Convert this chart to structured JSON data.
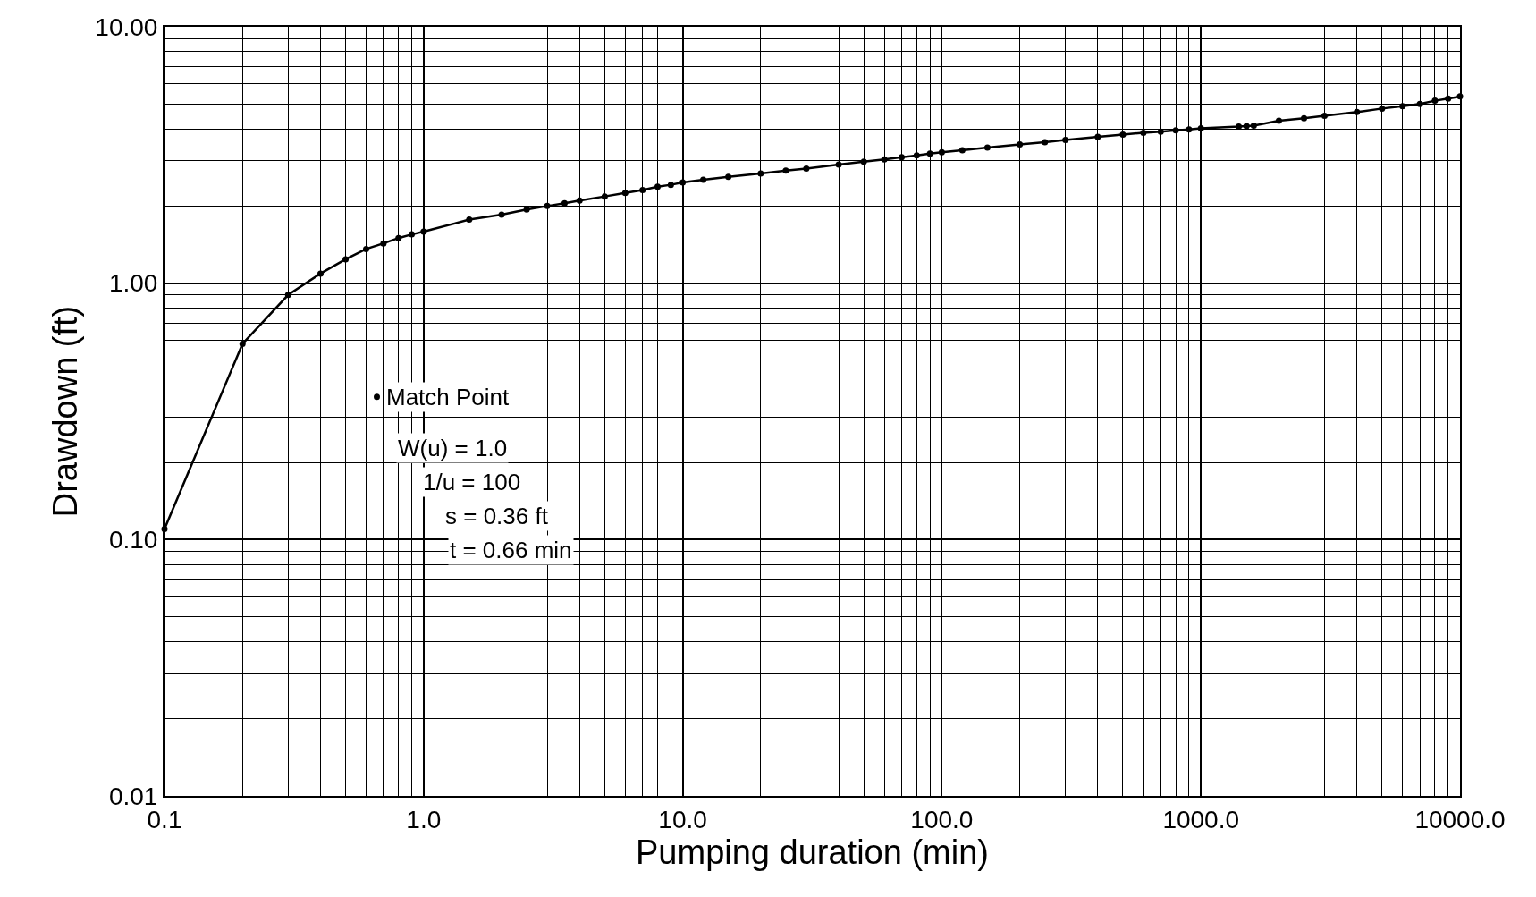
{
  "chart_data": {
    "type": "line",
    "xlabel": "Pumping duration (min)",
    "ylabel": "Drawdown (ft)",
    "log": "xy",
    "grid": true,
    "legend": false,
    "marker": "circle",
    "line_style": "solid",
    "xlim": [
      0.1,
      10000
    ],
    "xticks": [
      {
        "value": 0.1,
        "label": "0.1"
      },
      {
        "value": 1,
        "label": "1.0"
      },
      {
        "value": 10,
        "label": "10.0"
      },
      {
        "value": 100,
        "label": "100.0"
      },
      {
        "value": 1000,
        "label": "1000.0"
      },
      {
        "value": 10000,
        "label": "10000.0"
      }
    ],
    "ylim": [
      0.01,
      10
    ],
    "yticks": [
      {
        "value": 0.01,
        "label": "0.01"
      },
      {
        "value": 0.1,
        "label": "0.10"
      },
      {
        "value": 1,
        "label": "1.00"
      },
      {
        "value": 10,
        "label": "10.00"
      }
    ],
    "series": [
      {
        "color": "#000000",
        "x": [
          0.1,
          0.2,
          0.3,
          0.4,
          0.5,
          0.6,
          0.7,
          0.8,
          0.9,
          1,
          1.5,
          2,
          2.5,
          3,
          3.5,
          4,
          5,
          6,
          7,
          8,
          9,
          10,
          12,
          15,
          20,
          25,
          30,
          40,
          50,
          60,
          70,
          80,
          90,
          100,
          120,
          150,
          200,
          250,
          300,
          400,
          500,
          600,
          700,
          800,
          900,
          1000,
          1400,
          1500,
          1600,
          2000,
          2500,
          3000,
          4000,
          5000,
          6000,
          7000,
          8000,
          9000,
          10000
        ],
        "values": [
          0.11,
          0.58,
          0.9,
          1.09,
          1.24,
          1.36,
          1.43,
          1.5,
          1.55,
          1.59,
          1.77,
          1.85,
          1.94,
          2.0,
          2.05,
          2.1,
          2.18,
          2.25,
          2.31,
          2.38,
          2.42,
          2.47,
          2.53,
          2.6,
          2.68,
          2.75,
          2.8,
          2.9,
          2.98,
          3.04,
          3.1,
          3.15,
          3.2,
          3.24,
          3.3,
          3.38,
          3.48,
          3.55,
          3.62,
          3.72,
          3.8,
          3.86,
          3.9,
          3.95,
          3.98,
          4.02,
          4.08,
          4.1,
          4.12,
          4.3,
          4.4,
          4.5,
          4.65,
          4.8,
          4.9,
          5.0,
          5.15,
          5.25,
          5.35
        ]
      },
      {
        "type": "scatter",
        "name": "Match Point",
        "color": "#000000",
        "x": [
          0.66
        ],
        "values": [
          0.36
        ]
      }
    ],
    "annotations": [
      "W(u) = 1.0",
      "1/u = 100",
      "s = 0.36 ft",
      "t = 0.66 min"
    ]
  }
}
